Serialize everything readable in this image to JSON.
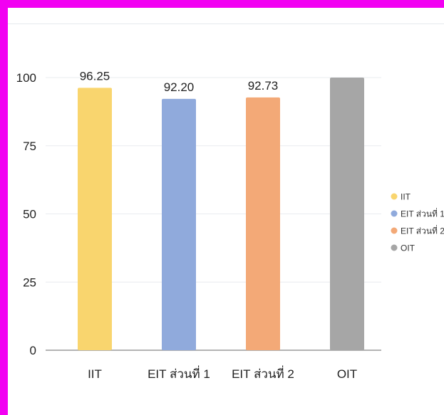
{
  "frame_color": "#f200f2",
  "chart_data": {
    "type": "bar",
    "categories": [
      "IIT",
      "EIT ส่วนที่ 1",
      "EIT ส่วนที่ 2",
      "OIT"
    ],
    "values": [
      96.25,
      92.2,
      92.73,
      100
    ],
    "data_labels": [
      "96.25",
      "92.20",
      "92.73",
      ""
    ],
    "colors": [
      "#f9d56e",
      "#90aadc",
      "#f3a977",
      "#a6a6a6"
    ],
    "title": "",
    "xlabel": "",
    "ylabel": "",
    "ylim": [
      0,
      100
    ],
    "yticks": [
      0,
      25,
      50,
      75,
      100
    ],
    "ytick_labels": [
      "0",
      "25",
      "50",
      "75",
      "100"
    ],
    "grid": true,
    "legend": {
      "position": "right",
      "entries": [
        "IIT",
        "EIT ส่วนที่ 1",
        "EIT ส่วนที่ 2",
        "OIT"
      ]
    }
  }
}
